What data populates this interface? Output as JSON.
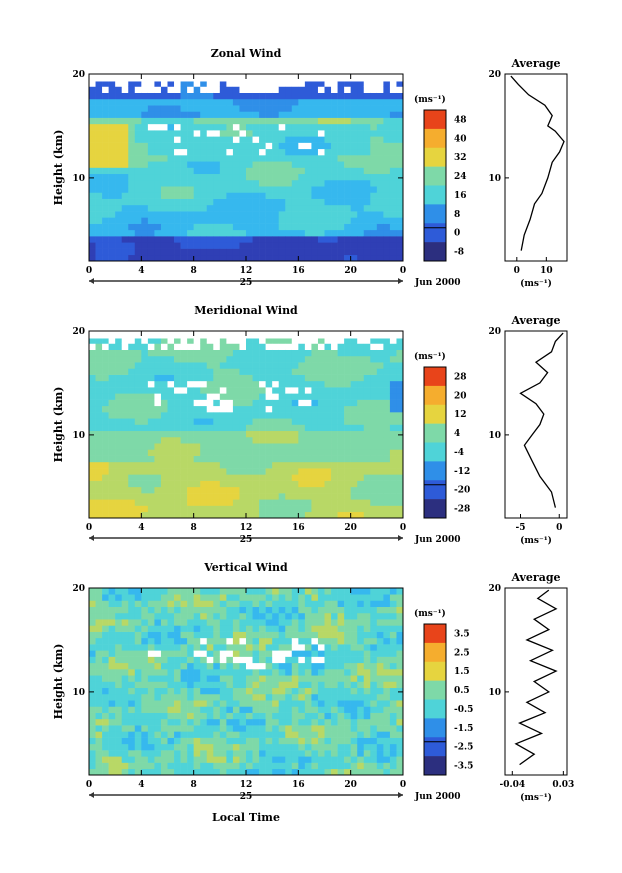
{
  "chart_data": [
    {
      "type": "heatmap",
      "title": "Zonal Wind",
      "ylabel": "Height (km)",
      "xlabel": "",
      "xticks": [
        "0",
        "4",
        "8",
        "12",
        "16",
        "20",
        "0"
      ],
      "yticks": [
        "10",
        "20"
      ],
      "date_day": "25",
      "date_suffix": "Jun 2000",
      "xlim": [
        0,
        24
      ],
      "ylim": [
        2,
        20
      ],
      "colorbar": {
        "unit": "(ms⁻¹)",
        "ticks": [
          "48",
          "40",
          "32",
          "24",
          "16",
          "8",
          "0",
          "-8"
        ],
        "range": [
          -8,
          52
        ]
      },
      "average": {
        "title": "Average",
        "xticks": [
          "0",
          "10"
        ],
        "xunit": "(ms⁻¹)",
        "yticks": [
          "10",
          "20"
        ],
        "xlim": [
          -4,
          17
        ],
        "ylim": [
          2,
          20
        ],
        "profile": [
          {
            "h": 3.0,
            "v": 1.5
          },
          {
            "h": 4.5,
            "v": 2.5
          },
          {
            "h": 6.0,
            "v": 4.5
          },
          {
            "h": 7.5,
            "v": 6.0
          },
          {
            "h": 8.5,
            "v": 8.5
          },
          {
            "h": 10.0,
            "v": 10.5
          },
          {
            "h": 11.5,
            "v": 12.0
          },
          {
            "h": 12.5,
            "v": 14.5
          },
          {
            "h": 13.5,
            "v": 16.0
          },
          {
            "h": 14.5,
            "v": 13.0
          },
          {
            "h": 15.0,
            "v": 10.5
          },
          {
            "h": 16.0,
            "v": 12.0
          },
          {
            "h": 17.0,
            "v": 9.5
          },
          {
            "h": 18.0,
            "v": 4.0
          },
          {
            "h": 19.0,
            "v": 0.5
          },
          {
            "h": 19.8,
            "v": -2.0
          }
        ]
      }
    },
    {
      "type": "heatmap",
      "title": "Meridional Wind",
      "ylabel": "Height (km)",
      "xlabel": "",
      "xticks": [
        "0",
        "4",
        "8",
        "12",
        "16",
        "20",
        "0"
      ],
      "yticks": [
        "10",
        "20"
      ],
      "date_day": "25",
      "date_suffix": "Jun 2000",
      "xlim": [
        0,
        24
      ],
      "ylim": [
        2,
        20
      ],
      "colorbar": {
        "unit": "(ms⁻¹)",
        "ticks": [
          "28",
          "20",
          "12",
          "4",
          "-4",
          "-12",
          "-20",
          "-28"
        ],
        "range": [
          -32,
          32
        ]
      },
      "average": {
        "title": "Average",
        "xticks": [
          "-5",
          "0"
        ],
        "xunit": "(ms⁻¹)",
        "yticks": [
          "10",
          "20"
        ],
        "xlim": [
          -7,
          1
        ],
        "ylim": [
          2,
          20
        ],
        "profile": [
          {
            "h": 3.0,
            "v": -0.5
          },
          {
            "h": 4.5,
            "v": -1.0
          },
          {
            "h": 6.0,
            "v": -2.5
          },
          {
            "h": 7.5,
            "v": -3.5
          },
          {
            "h": 9.0,
            "v": -4.5
          },
          {
            "h": 10.0,
            "v": -3.5
          },
          {
            "h": 11.0,
            "v": -2.5
          },
          {
            "h": 12.0,
            "v": -2.0
          },
          {
            "h": 13.0,
            "v": -3.0
          },
          {
            "h": 14.0,
            "v": -5.0
          },
          {
            "h": 15.0,
            "v": -2.5
          },
          {
            "h": 16.0,
            "v": -1.5
          },
          {
            "h": 17.0,
            "v": -3.0
          },
          {
            "h": 18.0,
            "v": -1.0
          },
          {
            "h": 19.0,
            "v": -0.5
          },
          {
            "h": 19.8,
            "v": 0.5
          }
        ]
      }
    },
    {
      "type": "heatmap",
      "title": "Vertical Wind",
      "ylabel": "Height (km)",
      "xlabel": "Local Time",
      "xticks": [
        "0",
        "4",
        "8",
        "12",
        "16",
        "20",
        "0"
      ],
      "yticks": [
        "10",
        "20"
      ],
      "date_day": "25",
      "date_suffix": "Jun 2000",
      "xlim": [
        0,
        24
      ],
      "ylim": [
        2,
        20
      ],
      "colorbar": {
        "unit": "(ms⁻¹)",
        "ticks": [
          "3.5",
          "2.5",
          "1.5",
          "0.5",
          "-0.5",
          "-1.5",
          "-2.5",
          "-3.5"
        ],
        "range": [
          -4,
          4
        ]
      },
      "average": {
        "title": "Average",
        "xticks": [
          "-0.04",
          "0.03"
        ],
        "xunit": "(ms⁻¹)",
        "yticks": [
          "10",
          "20"
        ],
        "xlim": [
          -0.05,
          0.035
        ],
        "ylim": [
          2,
          20
        ],
        "profile": [
          {
            "h": 3.0,
            "v": -0.03
          },
          {
            "h": 4.0,
            "v": -0.01
          },
          {
            "h": 5.0,
            "v": -0.035
          },
          {
            "h": 6.0,
            "v": 0.0
          },
          {
            "h": 7.0,
            "v": -0.03
          },
          {
            "h": 8.0,
            "v": 0.005
          },
          {
            "h": 9.0,
            "v": -0.02
          },
          {
            "h": 10.0,
            "v": 0.01
          },
          {
            "h": 11.0,
            "v": -0.01
          },
          {
            "h": 12.0,
            "v": 0.02
          },
          {
            "h": 13.0,
            "v": -0.015
          },
          {
            "h": 14.0,
            "v": 0.015
          },
          {
            "h": 15.0,
            "v": -0.02
          },
          {
            "h": 16.0,
            "v": 0.01
          },
          {
            "h": 17.0,
            "v": -0.01
          },
          {
            "h": 18.0,
            "v": 0.02
          },
          {
            "h": 19.0,
            "v": -0.005
          },
          {
            "h": 19.8,
            "v": 0.01
          }
        ]
      }
    }
  ]
}
